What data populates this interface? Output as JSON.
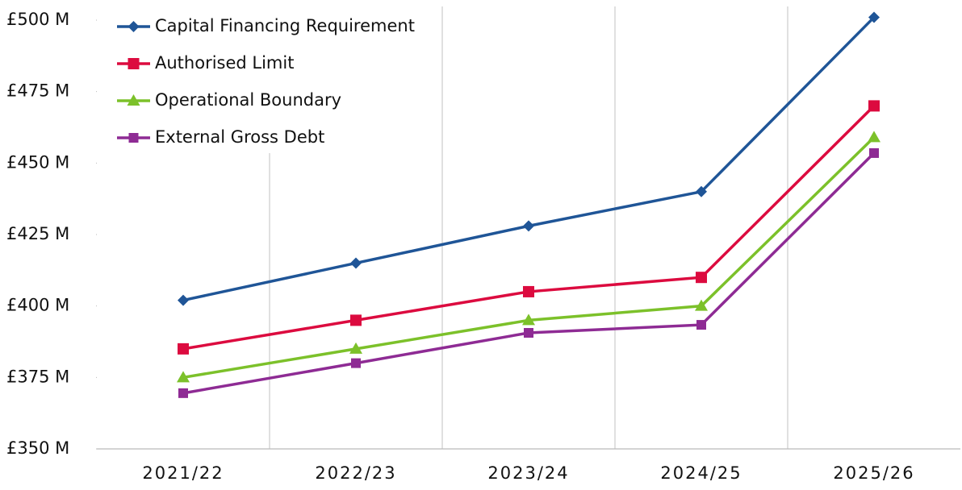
{
  "chart_data": {
    "type": "line",
    "categories": [
      "2021/22",
      "2022/23",
      "2023/24",
      "2024/25",
      "2025/26"
    ],
    "series": [
      {
        "name": "Capital Financing Requirement",
        "color": "#1f5597",
        "marker": "diamond",
        "values": [
          402,
          415,
          428,
          440,
          501
        ]
      },
      {
        "name": "Authorised Limit",
        "color": "#dc0b3f",
        "marker": "square",
        "values": [
          385,
          395,
          405,
          410,
          470
        ]
      },
      {
        "name": "Operational Boundary",
        "color": "#7cc12a",
        "marker": "triangle",
        "values": [
          375,
          385,
          395,
          400,
          459
        ]
      },
      {
        "name": "External Gross Debt",
        "color": "#8e2b94",
        "marker": "square",
        "values": [
          369.5,
          380,
          390.6,
          393.4,
          453.5
        ]
      }
    ],
    "ylim": [
      350,
      500
    ],
    "yticks": [
      {
        "value": 350,
        "label": "£350 M"
      },
      {
        "value": 375,
        "label": "£375 M"
      },
      {
        "value": 400,
        "label": "£400 M"
      },
      {
        "value": 425,
        "label": "£425 M"
      },
      {
        "value": 450,
        "label": "£450 M"
      },
      {
        "value": 475,
        "label": "£475 M"
      },
      {
        "value": 500,
        "label": "£500 M"
      }
    ],
    "grid": true,
    "legend": "top-left"
  }
}
